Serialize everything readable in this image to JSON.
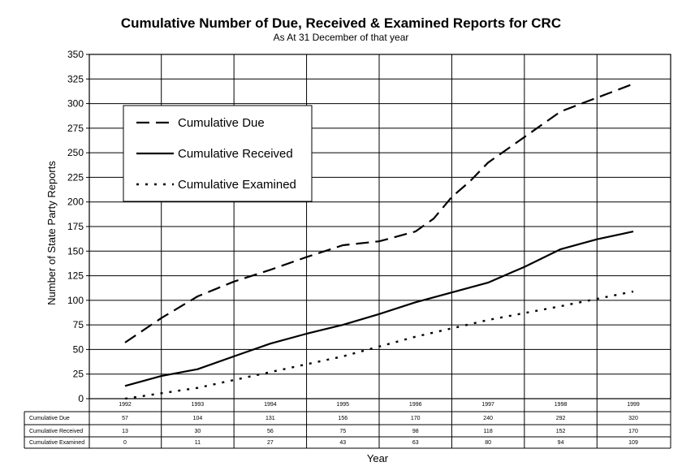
{
  "chart_data": {
    "type": "line",
    "title": "Cumulative Number of Due, Received & Examined Reports for CRC",
    "subtitle": "As At 31 December of that year",
    "xlabel": "Year",
    "ylabel": "Number of State Party Reports",
    "ylim": [
      0,
      350
    ],
    "yticks": [
      "0",
      "25",
      "50",
      "75",
      "100",
      "125",
      "150",
      "175",
      "200",
      "225",
      "250",
      "275",
      "300",
      "325",
      "350"
    ],
    "categories": [
      "1992",
      "1993",
      "1994",
      "1995",
      "1996",
      "1997",
      "1998",
      "1999"
    ],
    "grid": true,
    "legend_position": "top-left",
    "series": [
      {
        "name": "Cumulative Due",
        "style": "dashed",
        "table_values": [
          "57",
          "104",
          "131",
          "156",
          "170",
          "240",
          "292",
          "320"
        ],
        "x": [
          1992,
          1992.5,
          1993,
          1993.5,
          1994,
          1994.5,
          1995,
          1995.5,
          1996,
          1996.25,
          1996.5,
          1996.75,
          1997,
          1997.5,
          1998,
          1998.5,
          1999
        ],
        "y": [
          57,
          82,
          104,
          119,
          131,
          144,
          156,
          160,
          170,
          183,
          205,
          221,
          240,
          266,
          292,
          306,
          320
        ]
      },
      {
        "name": "Cumulative Received",
        "style": "solid",
        "table_values": [
          "13",
          "30",
          "56",
          "75",
          "98",
          "118",
          "152",
          "170"
        ],
        "x": [
          1992,
          1992.5,
          1993,
          1993.5,
          1994,
          1994.5,
          1995,
          1995.5,
          1996,
          1996.5,
          1997,
          1997.5,
          1998,
          1998.5,
          1999
        ],
        "y": [
          13,
          23,
          30,
          43,
          56,
          66,
          75,
          86,
          98,
          108,
          118,
          134,
          152,
          162,
          170
        ]
      },
      {
        "name": "Cumulative Examined",
        "style": "dotted",
        "table_values": [
          "0",
          "11",
          "27",
          "43",
          "63",
          "80",
          "94",
          "109"
        ],
        "x": [
          1992,
          1993,
          1994,
          1995,
          1996,
          1997,
          1998,
          1999
        ],
        "y": [
          0,
          11,
          27,
          43,
          63,
          80,
          94,
          109
        ]
      }
    ]
  }
}
